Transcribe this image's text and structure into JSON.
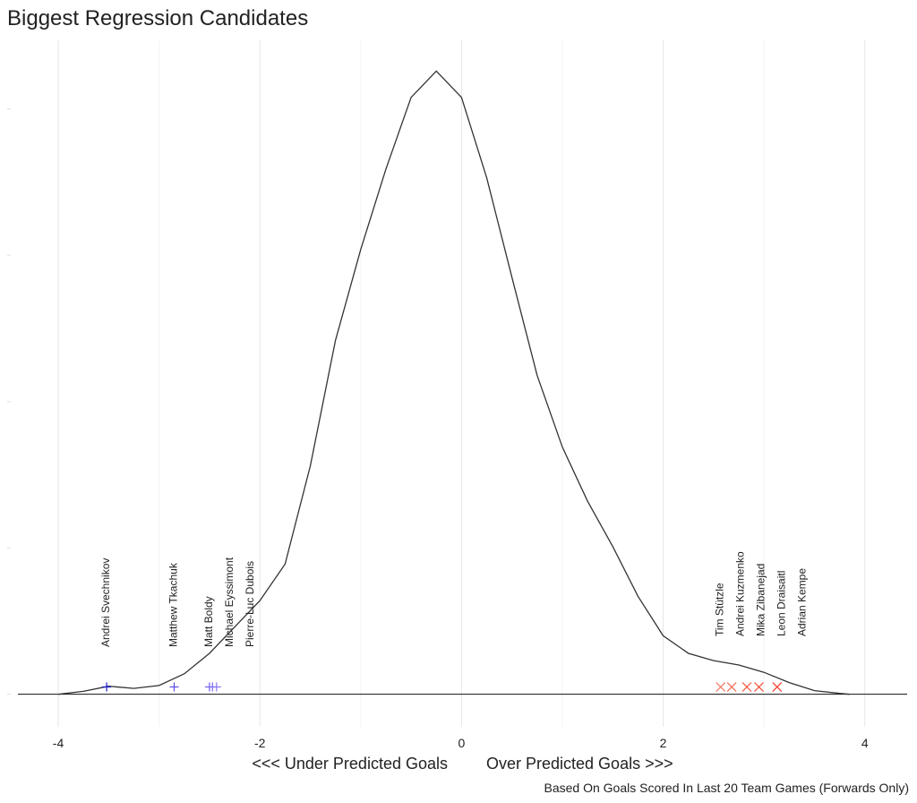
{
  "chart_data": {
    "type": "density",
    "title": "Biggest Regression Candidates",
    "xlabel_left": "<<< Under Predicted Goals",
    "xlabel_right": "Over Predicted Goals >>>",
    "caption": "Based On Goals Scored In Last 20 Team Games (Forwards Only)",
    "xlim": [
      -4.4,
      4.42
    ],
    "ylim": [
      -0.01,
      0.447
    ],
    "xticks": [
      -4,
      -2,
      0,
      2,
      4
    ],
    "xminor": [
      -3,
      -1,
      1,
      3
    ],
    "yticks": [
      0,
      0.1,
      0.2,
      0.3,
      0.4
    ],
    "grid": true,
    "curve_color": "#333333",
    "curve": {
      "x": [
        -4,
        -3.75,
        -3.5,
        -3.25,
        -3,
        -2.75,
        -2.5,
        -2.25,
        -2,
        -1.75,
        -1.5,
        -1.25,
        -1,
        -0.75,
        -0.5,
        -0.25,
        0,
        0.25,
        0.5,
        0.75,
        1,
        1.25,
        1.5,
        1.75,
        2,
        2.25,
        2.5,
        2.75,
        3,
        3.25,
        3.5,
        3.75,
        3.85
      ],
      "y": [
        0,
        0.002,
        0.0055,
        0.004,
        0.006,
        0.014,
        0.028,
        0.046,
        0.064,
        0.089,
        0.156,
        0.242,
        0.304,
        0.359,
        0.408,
        0.426,
        0.408,
        0.353,
        0.285,
        0.218,
        0.169,
        0.132,
        0.101,
        0.067,
        0.04,
        0.028,
        0.023,
        0.02,
        0.015,
        0.008,
        0.0025,
        0.0006,
        0
      ]
    },
    "points": [
      {
        "name": "Andrei Svechnikov",
        "x": -3.52,
        "y": 0.005,
        "color": "#1a1acc",
        "marker": "plus"
      },
      {
        "name": "Matthew Tkachuk",
        "x": -2.85,
        "y": 0.005,
        "color": "#5a4ee0",
        "marker": "plus"
      },
      {
        "name": "Matt Boldy",
        "x": -2.5,
        "y": 0.005,
        "color": "#6f5ff0",
        "marker": "plus"
      },
      {
        "name": "Michael Eyssimont",
        "x": -2.47,
        "y": 0.005,
        "color": "#7a6af5",
        "marker": "plus"
      },
      {
        "name": "Pierre-Luc Dubois",
        "x": -2.43,
        "y": 0.005,
        "color": "#8a78f8",
        "marker": "plus"
      },
      {
        "name": "Tim Stützle",
        "x": 2.57,
        "y": 0.005,
        "color": "#f07a60",
        "marker": "cross"
      },
      {
        "name": "Andrei Kuzmenko",
        "x": 2.68,
        "y": 0.005,
        "color": "#f26a50",
        "marker": "cross"
      },
      {
        "name": "Mika Zibanejad",
        "x": 2.83,
        "y": 0.005,
        "color": "#f45a42",
        "marker": "cross"
      },
      {
        "name": "Leon Draisaitl",
        "x": 2.95,
        "y": 0.005,
        "color": "#f54a35",
        "marker": "cross"
      },
      {
        "name": "Adrian Kempe",
        "x": 3.13,
        "y": 0.005,
        "color": "#f53a28",
        "marker": "cross"
      }
    ]
  }
}
